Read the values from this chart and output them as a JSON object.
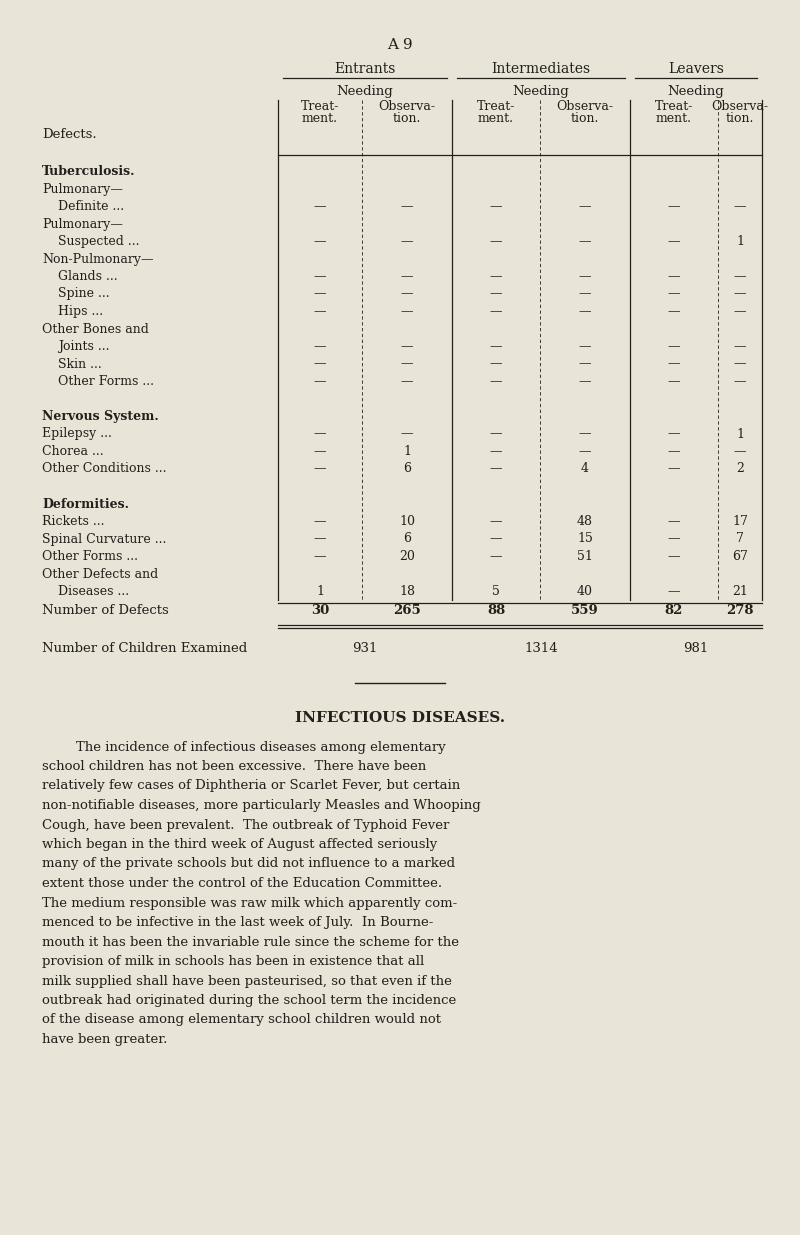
{
  "page_label": "A 9",
  "bg_color": "#e8e4d8",
  "text_color": "#231f1a",
  "rows": [
    {
      "label": "Tuberculosis.",
      "bold": true,
      "indent": false,
      "vals": [
        "",
        "",
        "",
        "",
        "",
        ""
      ],
      "blank": true
    },
    {
      "label": "Pulmonary—",
      "bold": false,
      "indent": false,
      "vals": [
        "",
        "",
        "",
        "",
        "",
        ""
      ],
      "blank": true
    },
    {
      "label": "  Definite ...",
      "bold": false,
      "indent": true,
      "vals": [
        "—",
        "—",
        "—",
        "—",
        "—",
        "—"
      ],
      "blank": false
    },
    {
      "label": "Pulmonary—",
      "bold": false,
      "indent": false,
      "vals": [
        "",
        "",
        "",
        "",
        "",
        ""
      ],
      "blank": true
    },
    {
      "label": "  Suspected ...",
      "bold": false,
      "indent": true,
      "vals": [
        "—",
        "—",
        "—",
        "—",
        "—",
        "1"
      ],
      "blank": false
    },
    {
      "label": "Non-Pulmonary—",
      "bold": false,
      "indent": false,
      "vals": [
        "",
        "",
        "",
        "",
        "",
        ""
      ],
      "blank": true
    },
    {
      "label": "    Glands ...",
      "bold": false,
      "indent": true,
      "vals": [
        "—",
        "—",
        "—",
        "—",
        "—",
        "—"
      ],
      "blank": false
    },
    {
      "label": "    Spine ...",
      "bold": false,
      "indent": true,
      "vals": [
        "—",
        "—",
        "—",
        "—",
        "—",
        "—"
      ],
      "blank": false
    },
    {
      "label": "    Hips ...",
      "bold": false,
      "indent": true,
      "vals": [
        "—",
        "—",
        "—",
        "—",
        "—",
        "—"
      ],
      "blank": false
    },
    {
      "label": "Other Bones and",
      "bold": false,
      "indent": false,
      "vals": [
        "",
        "",
        "",
        "",
        "",
        ""
      ],
      "blank": true
    },
    {
      "label": "    Joints ...",
      "bold": false,
      "indent": true,
      "vals": [
        "—",
        "—",
        "—",
        "—",
        "—",
        "—"
      ],
      "blank": false
    },
    {
      "label": "    Skin ...",
      "bold": false,
      "indent": true,
      "vals": [
        "—",
        "—",
        "—",
        "—",
        "—",
        "—"
      ],
      "blank": false
    },
    {
      "label": "    Other Forms ...",
      "bold": false,
      "indent": true,
      "vals": [
        "—",
        "—",
        "—",
        "—",
        "—",
        "—"
      ],
      "blank": false
    },
    {
      "label": "",
      "bold": false,
      "indent": false,
      "vals": [
        "",
        "",
        "",
        "",
        "",
        ""
      ],
      "blank": true
    },
    {
      "label": "Nervous System.",
      "bold": true,
      "indent": false,
      "vals": [
        "",
        "",
        "",
        "",
        "",
        ""
      ],
      "blank": true
    },
    {
      "label": "Epilepsy ...",
      "bold": false,
      "indent": false,
      "vals": [
        "—",
        "—",
        "—",
        "—",
        "—",
        "1"
      ],
      "blank": false
    },
    {
      "label": "Chorea ...",
      "bold": false,
      "indent": false,
      "vals": [
        "—",
        "1",
        "—",
        "—",
        "—",
        "—"
      ],
      "blank": false
    },
    {
      "label": "Other Conditions ...",
      "bold": false,
      "indent": false,
      "vals": [
        "—",
        "6",
        "—",
        "4",
        "—",
        "2"
      ],
      "blank": false
    },
    {
      "label": "",
      "bold": false,
      "indent": false,
      "vals": [
        "",
        "",
        "",
        "",
        "",
        ""
      ],
      "blank": true
    },
    {
      "label": "Deformities.",
      "bold": true,
      "indent": false,
      "vals": [
        "",
        "",
        "",
        "",
        "",
        ""
      ],
      "blank": true
    },
    {
      "label": "Rickets ...",
      "bold": false,
      "indent": false,
      "vals": [
        "—",
        "10",
        "—",
        "48",
        "—",
        "17"
      ],
      "blank": false
    },
    {
      "label": "Spinal Curvature ...",
      "bold": false,
      "indent": false,
      "vals": [
        "—",
        "6",
        "—",
        "15",
        "—",
        "7"
      ],
      "blank": false
    },
    {
      "label": "Other Forms ...",
      "bold": false,
      "indent": false,
      "vals": [
        "—",
        "20",
        "—",
        "51",
        "—",
        "67"
      ],
      "blank": false
    },
    {
      "label": "Other Defects and",
      "bold": false,
      "indent": false,
      "vals": [
        "",
        "",
        "",
        "",
        "",
        ""
      ],
      "blank": true
    },
    {
      "label": "  Diseases ...",
      "bold": false,
      "indent": true,
      "vals": [
        "1",
        "18",
        "5",
        "40",
        "—",
        "21"
      ],
      "blank": false
    }
  ],
  "totals_label": "Number of Defects",
  "totals_vals": [
    "30",
    "265",
    "88",
    "559",
    "82",
    "278"
  ],
  "children_label": "Number of Children Examined",
  "children_vals": [
    "931",
    "1314",
    "981"
  ],
  "infectious_title": "INFECTIOUS DISEASES.",
  "para_lines": [
    "        The incidence of infectious diseases among elementary",
    "school children has not been excessive.  There have been",
    "relatively few cases of Diphtheria or Scarlet Fever, but certain",
    "non-notifiable diseases, more particularly Measles and Whooping",
    "Cough, have been prevalent.  The outbreak of Typhoid Fever",
    "which began in the third week of August affected seriously",
    "many of the private schools but did not influence to a marked",
    "extent those under the control of the Education Committee.",
    "The medium responsible was raw milk which apparently com-",
    "menced to be infective in the last week of July.  In Bourne-",
    "mouth it has been the invariable rule since the scheme for the",
    "provision of milk in schools has been in existence that all",
    "milk supplied shall have been pasteurised, so that even if the",
    "outbreak had originated during the school term the incidence",
    "of the disease among elementary school children would not",
    "have been greater."
  ]
}
